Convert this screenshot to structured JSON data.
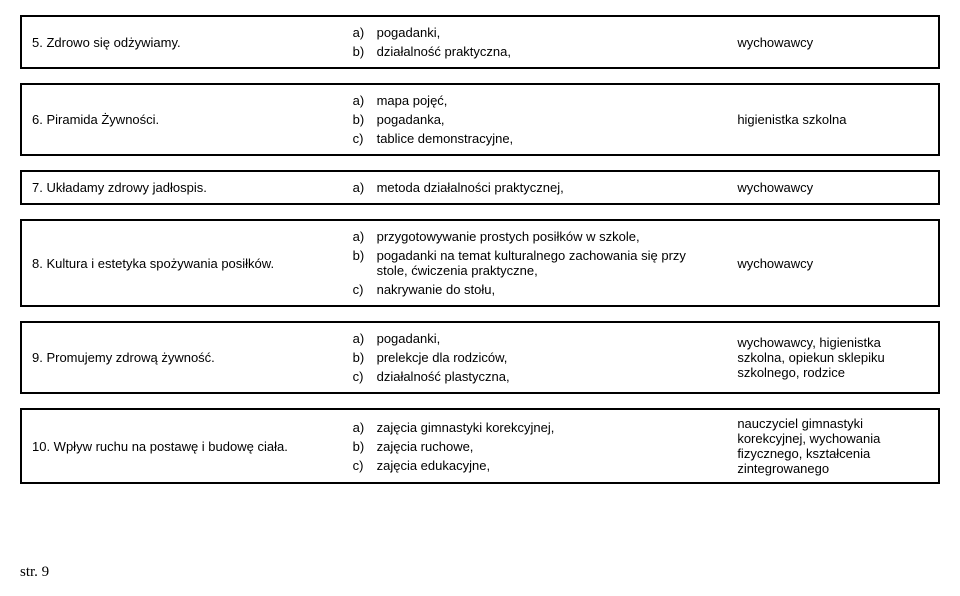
{
  "rows": [
    {
      "topic": "5. Zdrowo się odżywiamy.",
      "items": [
        {
          "marker": "a)",
          "text": "pogadanki,"
        },
        {
          "marker": "b)",
          "text": "działalność praktyczna,"
        }
      ],
      "owner": "wychowawcy"
    },
    {
      "topic": "6. Piramida Żywności.",
      "items": [
        {
          "marker": "a)",
          "text": "mapa pojęć,"
        },
        {
          "marker": "b)",
          "text": "pogadanka,"
        },
        {
          "marker": "c)",
          "text": "tablice demonstracyjne,"
        }
      ],
      "owner": "higienistka szkolna"
    },
    {
      "topic": "7. Układamy zdrowy jadłospis.",
      "items": [
        {
          "marker": "a)",
          "text": "metoda działalności praktycznej,"
        }
      ],
      "owner": "wychowawcy"
    },
    {
      "topic": "8. Kultura i estetyka spożywania posiłków.",
      "items": [
        {
          "marker": "a)",
          "text": "przygotowywanie prostych posiłków w szkole,"
        },
        {
          "marker": "b)",
          "text": "pogadanki na temat kulturalnego zachowania się przy stole, ćwiczenia praktyczne,"
        },
        {
          "marker": "c)",
          "text": "nakrywanie do stołu,"
        }
      ],
      "owner": "wychowawcy"
    },
    {
      "topic": "9. Promujemy zdrową żywność.",
      "items": [
        {
          "marker": "a)",
          "text": "pogadanki,"
        },
        {
          "marker": "b)",
          "text": "prelekcje dla rodziców,"
        },
        {
          "marker": "c)",
          "text": "działalność plastyczna,"
        }
      ],
      "owner": "wychowawcy, higienistka szkolna, opiekun sklepiku szkolnego, rodzice"
    },
    {
      "topic": "10. Wpływ ruchu na postawę i budowę ciała.",
      "items": [
        {
          "marker": "a)",
          "text": "zajęcia gimnastyki korekcyjnej,"
        },
        {
          "marker": "b)",
          "text": "zajęcia ruchowe,"
        },
        {
          "marker": "c)",
          "text": "zajęcia edukacyjne,"
        }
      ],
      "owner": "nauczyciel gimnastyki korekcyjnej, wychowania fizycznego, kształcenia zintegrowanego"
    }
  ],
  "footer": "str. 9",
  "style": {
    "background_color": "#ffffff",
    "text_color": "#000000",
    "border_color": "#000000",
    "border_width": 2,
    "body_font_size": 13,
    "footer_font_size": 15,
    "row_gap": 14,
    "col_widths_pct": [
      35,
      42,
      23
    ]
  }
}
